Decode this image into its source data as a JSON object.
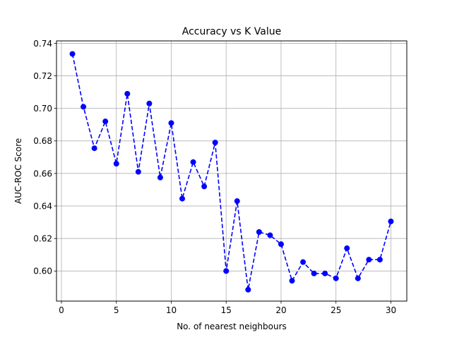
{
  "chart_data": {
    "type": "line",
    "title": "Accuracy vs K Value",
    "xlabel": "No. of nearest neighbours",
    "ylabel": "AUC-ROC Score",
    "xlim": [
      -0.45,
      31.45
    ],
    "ylim": [
      0.5815,
      0.7415
    ],
    "xticks": [
      0,
      5,
      10,
      15,
      20,
      25,
      30
    ],
    "yticks": [
      0.6,
      0.62,
      0.64,
      0.66,
      0.68,
      0.7,
      0.72,
      0.74
    ],
    "grid": true,
    "series": [
      {
        "color": "#0000ff",
        "line_style": "dashed",
        "marker": "circle",
        "x": [
          1,
          2,
          3,
          4,
          5,
          6,
          7,
          8,
          9,
          10,
          11,
          12,
          13,
          14,
          15,
          16,
          17,
          18,
          19,
          20,
          21,
          22,
          23,
          24,
          25,
          26,
          27,
          28,
          29,
          30
        ],
        "values": [
          0.7335,
          0.701,
          0.6755,
          0.692,
          0.666,
          0.709,
          0.661,
          0.703,
          0.6575,
          0.691,
          0.6445,
          0.667,
          0.652,
          0.679,
          0.6,
          0.643,
          0.5885,
          0.624,
          0.622,
          0.6165,
          0.594,
          0.6055,
          0.5985,
          0.5985,
          0.5955,
          0.614,
          0.5955,
          0.607,
          0.607,
          0.6305
        ]
      }
    ]
  }
}
